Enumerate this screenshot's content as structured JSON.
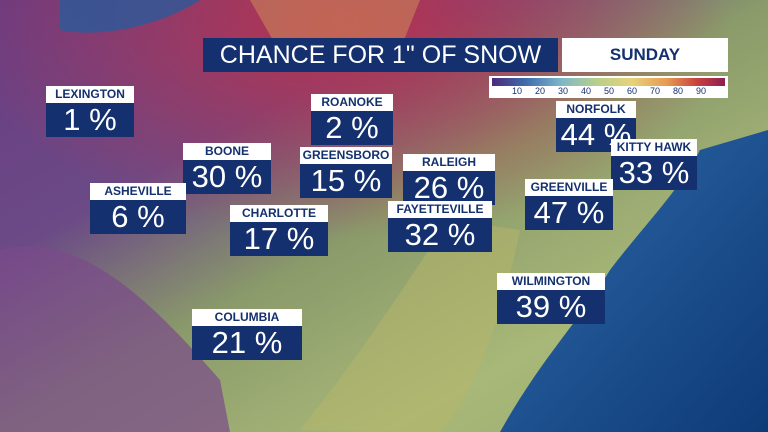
{
  "header": {
    "title": "CHANCE FOR 1\" OF SNOW",
    "day": "SUNDAY"
  },
  "legend": {
    "ticks": [
      10,
      20,
      30,
      40,
      50,
      60,
      70,
      80,
      90
    ]
  },
  "cities": [
    {
      "name": "LEXINGTON",
      "chance": "1 %"
    },
    {
      "name": "ROANOKE",
      "chance": "2 %"
    },
    {
      "name": "NORFOLK",
      "chance": "44 %"
    },
    {
      "name": "KITTY HAWK",
      "chance": "33 %"
    },
    {
      "name": "BOONE",
      "chance": "30 %"
    },
    {
      "name": "GREENSBORO",
      "chance": "15 %"
    },
    {
      "name": "RALEIGH",
      "chance": "26 %"
    },
    {
      "name": "GREENVILLE",
      "chance": "47 %"
    },
    {
      "name": "ASHEVILLE",
      "chance": "6 %"
    },
    {
      "name": "CHARLOTTE",
      "chance": "17 %"
    },
    {
      "name": "FAYETTEVILLE",
      "chance": "32 %"
    },
    {
      "name": "WILMINGTON",
      "chance": "39 %"
    },
    {
      "name": "COLUMBIA",
      "chance": "21 %"
    }
  ]
}
